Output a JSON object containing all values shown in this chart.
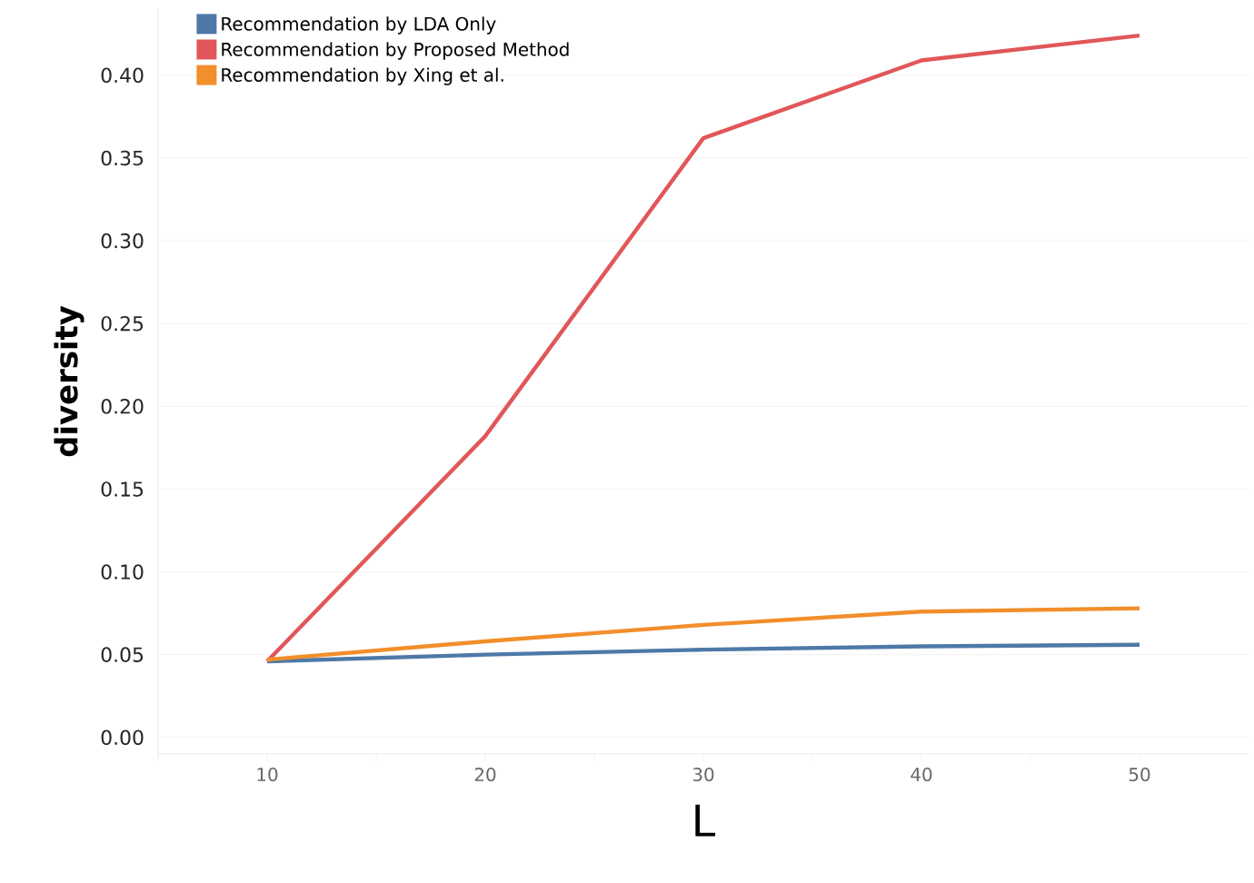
{
  "chart_data": {
    "type": "line",
    "xlabel": "L",
    "ylabel": "diversity",
    "x": [
      10,
      20,
      30,
      40,
      50
    ],
    "series": [
      {
        "name": "Recommendation by LDA Only",
        "color": "#4e79a7",
        "values": [
          0.046,
          0.05,
          0.053,
          0.055,
          0.056
        ]
      },
      {
        "name": "Recommendation by Proposed Method",
        "color": "#e15759",
        "values": [
          0.046,
          0.182,
          0.362,
          0.409,
          0.424
        ]
      },
      {
        "name": "Recommendation by Xing et al.",
        "color": "#f28e2b",
        "values": [
          0.047,
          0.058,
          0.068,
          0.076,
          0.078
        ]
      }
    ],
    "xlim": [
      5,
      55
    ],
    "ylim": [
      -0.01,
      0.44
    ],
    "xticks": [
      {
        "value": 5,
        "label": null
      },
      10,
      {
        "value": 15,
        "label": null
      },
      20,
      {
        "value": 25,
        "label": null
      },
      30,
      {
        "value": 35,
        "label": null
      },
      40,
      {
        "value": 45,
        "label": null
      },
      50
    ],
    "yticks": [
      {
        "value": 0,
        "label": "0.00"
      },
      0.05,
      {
        "value": 0.1,
        "label": "0.10"
      },
      0.15,
      {
        "value": 0.2,
        "label": "0.20"
      },
      0.25,
      {
        "value": 0.3,
        "label": "0.30"
      },
      0.35,
      {
        "value": 0.4,
        "label": "0.40"
      }
    ],
    "grid": "y",
    "legend": "top left",
    "marker": "none",
    "line_style": "solid"
  }
}
